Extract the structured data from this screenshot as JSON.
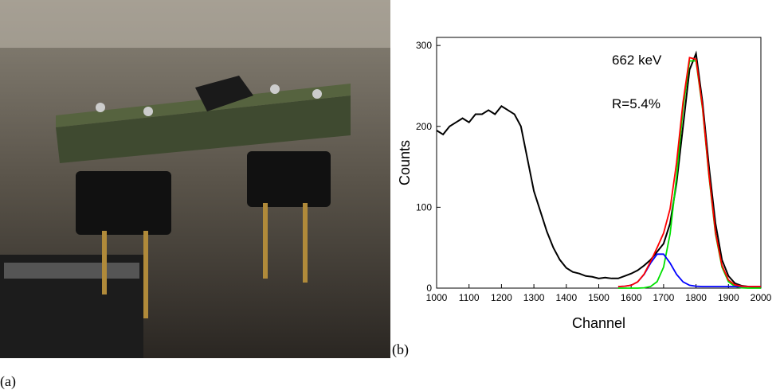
{
  "panel_a": {
    "caption": "(a)"
  },
  "panel_b": {
    "caption": "(b)"
  },
  "chart_data": {
    "type": "line",
    "xlabel": "Channel",
    "ylabel": "Counts",
    "annotations": [
      "662 keV",
      "R=5.4%"
    ],
    "xlim": [
      1000,
      2000
    ],
    "ylim": [
      0,
      310
    ],
    "xticks": [
      1000,
      1100,
      1200,
      1300,
      1400,
      1500,
      1600,
      1700,
      1800,
      1900,
      2000
    ],
    "yticks": [
      0,
      100,
      200,
      300
    ],
    "series": [
      {
        "color": "#000000",
        "x": [
          1000,
          1020,
          1040,
          1060,
          1080,
          1100,
          1120,
          1140,
          1160,
          1180,
          1200,
          1220,
          1240,
          1260,
          1280,
          1300,
          1320,
          1340,
          1360,
          1380,
          1400,
          1420,
          1440,
          1460,
          1480,
          1500,
          1520,
          1540,
          1560,
          1580,
          1600,
          1620,
          1640,
          1660,
          1680,
          1700,
          1720,
          1740,
          1760,
          1780,
          1800,
          1820,
          1840,
          1860,
          1880,
          1900,
          1920,
          1940,
          1960,
          1980,
          2000
        ],
        "values": [
          195,
          190,
          200,
          205,
          210,
          205,
          215,
          215,
          220,
          215,
          225,
          220,
          215,
          200,
          160,
          120,
          95,
          70,
          50,
          35,
          25,
          20,
          18,
          15,
          14,
          12,
          13,
          12,
          12,
          15,
          18,
          22,
          28,
          35,
          45,
          55,
          80,
          130,
          200,
          270,
          290,
          230,
          150,
          80,
          35,
          15,
          6,
          3,
          2,
          1,
          1
        ]
      },
      {
        "color": "#00e000",
        "x": [
          1560,
          1580,
          1600,
          1620,
          1640,
          1660,
          1680,
          1700,
          1720,
          1740,
          1760,
          1780,
          1800,
          1820,
          1840,
          1860,
          1880,
          1900,
          1920,
          1940,
          1960,
          1980,
          2000
        ],
        "values": [
          0,
          0,
          0,
          0,
          0.4,
          2,
          8,
          26,
          67,
          138,
          222,
          281,
          281,
          222,
          138,
          67,
          26,
          8,
          2,
          0.4,
          0,
          0,
          0
        ]
      },
      {
        "color": "#0000ff",
        "x": [
          1560,
          1580,
          1600,
          1620,
          1640,
          1660,
          1680,
          1700,
          1720,
          1740,
          1760,
          1780,
          1800,
          1820,
          1840,
          1860,
          1880,
          1900,
          1920,
          1940,
          1960,
          1980,
          2000
        ],
        "values": [
          2,
          2.3,
          3.5,
          7.7,
          17,
          31,
          42,
          42,
          31,
          17,
          7.7,
          3.5,
          2.3,
          2,
          2,
          2,
          2,
          2,
          2,
          2,
          2,
          2,
          2
        ]
      },
      {
        "color": "#ff0000",
        "x": [
          1560,
          1580,
          1600,
          1620,
          1640,
          1660,
          1680,
          1700,
          1720,
          1740,
          1760,
          1780,
          1800,
          1820,
          1840,
          1860,
          1880,
          1900,
          1920,
          1940,
          1960,
          1980,
          2000
        ],
        "values": [
          2,
          2.3,
          3.5,
          7.7,
          17.4,
          33,
          50,
          68,
          98,
          155,
          230,
          285,
          283,
          224,
          140,
          69,
          28,
          10,
          4,
          2.4,
          2,
          2,
          2
        ]
      }
    ]
  }
}
